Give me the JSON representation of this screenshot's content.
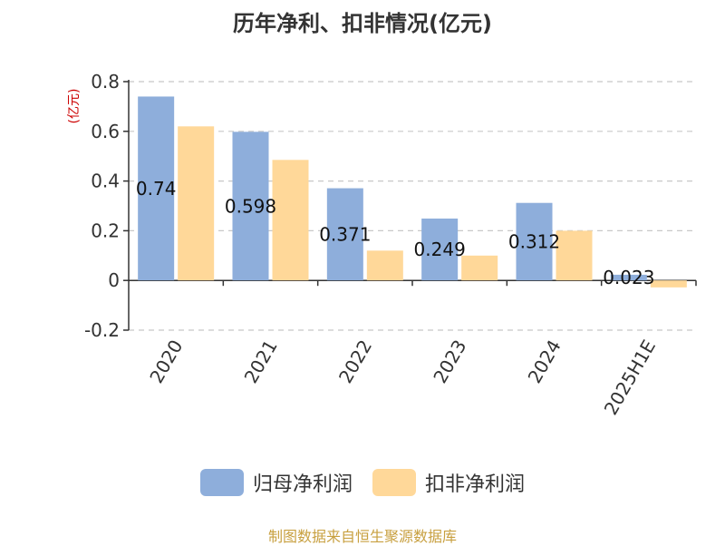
{
  "chart_data": {
    "type": "bar",
    "title": "历年净利、扣非情况(亿元)",
    "ylabel": "(亿元)",
    "categories": [
      "2020",
      "2021",
      "2022",
      "2023",
      "2024",
      "2025H1E"
    ],
    "series": [
      {
        "name": "归母净利润",
        "values": [
          0.74,
          0.598,
          0.371,
          0.249,
          0.312,
          0.023
        ],
        "color": "#8eaedb",
        "labels": [
          "0.74",
          "0.598",
          "0.371",
          "0.249",
          "0.312",
          "0.023"
        ]
      },
      {
        "name": "扣非净利润",
        "values": [
          0.62,
          0.485,
          0.12,
          0.1,
          0.2,
          -0.028
        ],
        "color": "#ffd899"
      }
    ],
    "yticks": [
      "0.8",
      "0.6",
      "0.4",
      "0.2",
      "0",
      "-0.2"
    ],
    "ylim": [
      -0.2,
      0.8
    ],
    "grid": true,
    "legend": "bottom"
  },
  "source": "制图数据来自恒生聚源数据库"
}
